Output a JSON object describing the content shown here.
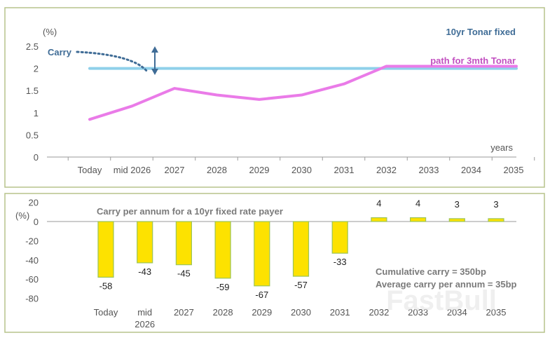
{
  "colors": {
    "frame": "#b7c38c",
    "fixed_line": "#8fd0ea",
    "path_line": "#ea7be8",
    "carry_arrow": "#3f6c96",
    "bar_fill": "#fde200",
    "bar_stroke": "#9bc45a",
    "note_text": "#7a7a7a",
    "watermark": "#e6e6e6"
  },
  "chart_data": [
    {
      "type": "line",
      "categories": [
        "Today",
        "mid 2026",
        "2027",
        "2028",
        "2029",
        "2030",
        "2031",
        "2032",
        "2033",
        "2034",
        "2035"
      ],
      "series": [
        {
          "name": "10yr Tonar fixed",
          "values": [
            2.0,
            2.0,
            2.0,
            2.0,
            2.0,
            2.0,
            2.0,
            2.0,
            2.0,
            2.0,
            2.0
          ]
        },
        {
          "name": "path for 3mth Tonar",
          "values": [
            0.85,
            1.15,
            1.55,
            1.4,
            1.3,
            1.4,
            1.65,
            2.05,
            2.05,
            2.05,
            2.05
          ]
        }
      ],
      "ylim": [
        0,
        2.5
      ],
      "yticks": [
        0,
        0.5,
        1,
        1.5,
        2,
        2.5
      ],
      "ylabel": "(%)",
      "xlabel": "years",
      "annotation": "Carry"
    },
    {
      "type": "bar",
      "title": "Carry per annum for a 10yr fixed rate payer",
      "categories": [
        "Today",
        "mid 2026",
        "2027",
        "2028",
        "2029",
        "2030",
        "2031",
        "2032",
        "2033",
        "2034",
        "2035"
      ],
      "values": [
        -58,
        -43,
        -45,
        -59,
        -67,
        -57,
        -33,
        4,
        4,
        3,
        3
      ],
      "ylim": [
        -80,
        20
      ],
      "yticks": [
        20,
        0,
        -20,
        -40,
        -60,
        -80
      ],
      "ylabel": "(%)",
      "notes": [
        "Cumulative carry = 350bp",
        "Average carry per annum = 35bp"
      ]
    }
  ],
  "watermark": "FastBull"
}
